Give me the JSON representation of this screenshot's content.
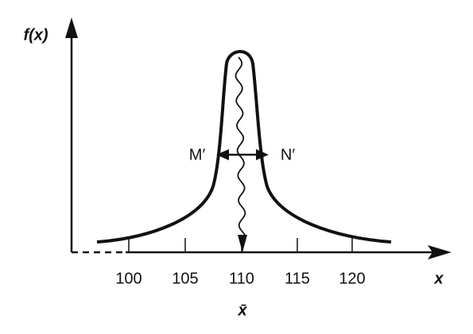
{
  "axes": {
    "y_label": "f(x)",
    "x_label": "x",
    "x_ticks": [
      "100",
      "105",
      "110",
      "115",
      "120"
    ]
  },
  "labels": {
    "mean": "x̄",
    "left_point": "M′",
    "right_point": "N′"
  }
}
